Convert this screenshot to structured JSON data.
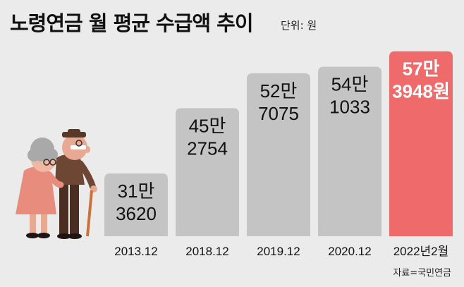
{
  "title": "노령연금 월 평균 수급액 추이",
  "unit_label": "단위: 원",
  "source": "자료=국민연금",
  "colors": {
    "bar": "#c4c4c4",
    "highlight": "#ef6b6b",
    "label": "#111111",
    "highlight_label": "#ffffff",
    "background": "#ebebeb"
  },
  "chart_data": {
    "type": "bar",
    "title": "노령연금 월 평균 수급액 추이",
    "ylabel": "",
    "xlabel": "",
    "unit": "원",
    "categories": [
      "2013.12",
      "2018.12",
      "2019.12",
      "2020.12",
      "2022년2월"
    ],
    "values": [
      313620,
      452754,
      527075,
      541033,
      573948
    ],
    "value_labels": [
      [
        "31만",
        "3620"
      ],
      [
        "45만",
        "2754"
      ],
      [
        "52만",
        "7075"
      ],
      [
        "54만",
        "1033"
      ],
      [
        "57만",
        "3948원"
      ]
    ],
    "highlight_index": 4,
    "ylim": [
      180000,
      590000
    ],
    "grid": false,
    "legend": "none"
  }
}
